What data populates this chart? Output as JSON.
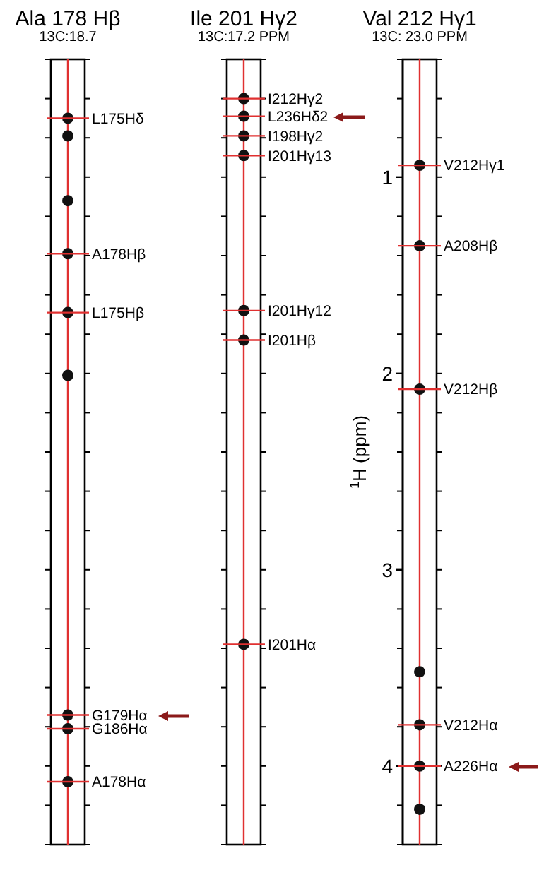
{
  "chart_data": {
    "type": "scatter",
    "ylabel": "$^{1}$H (ppm)",
    "categories": [
      "Ala 178 Hβ",
      "Ile 201 Hγ2",
      "Val 212 Hγ1"
    ],
    "ylim": [
      4.4,
      0.4
    ],
    "yticks": [
      1,
      2,
      3,
      4
    ],
    "marker": "circle",
    "series": [
      {
        "color": "#111111",
        "x": [
          "Ala 178 Hβ",
          "Ala 178 Hβ",
          "Ala 178 Hβ",
          "Ala 178 Hβ",
          "Ala 178 Hβ",
          "Ala 178 Hβ",
          "Ala 178 Hβ",
          "Ala 178 Hβ",
          "Ala 178 Hβ",
          "Ile 201 Hγ2",
          "Ile 201 Hγ2",
          "Ile 201 Hγ2",
          "Ile 201 Hγ2",
          "Ile 201 Hγ2",
          "Ile 201 Hγ2",
          "Ile 201 Hγ2",
          "Val 212 Hγ1",
          "Val 212 Hγ1",
          "Val 212 Hγ1",
          "Val 212 Hγ1",
          "Val 212 Hγ1",
          "Val 212 Hγ1",
          "Val 212 Hγ1"
        ],
        "values": [
          0.7,
          0.79,
          1.12,
          1.39,
          1.69,
          2.01,
          3.74,
          3.81,
          4.08,
          0.6,
          0.69,
          0.79,
          0.89,
          1.68,
          1.83,
          3.38,
          0.94,
          1.35,
          2.08,
          3.52,
          3.79,
          4.0,
          4.22
        ]
      }
    ],
    "ref_lines": [
      {
        "axis": "x",
        "value": "Ala 178 Hβ",
        "color": "#e03030"
      },
      {
        "axis": "x",
        "value": "Ile 201 Hγ2",
        "color": "#e03030"
      },
      {
        "axis": "x",
        "value": "Val 212 Hγ1",
        "color": "#e03030"
      }
    ],
    "annotations": [
      "13C:18.7",
      "13C:17.2 PPM",
      "13C: 23.0 PPM",
      {
        "text": "L175Hδ",
        "x": "Ala 178 Hβ",
        "y": 0.7
      },
      {
        "text": "A178Hβ",
        "x": "Ala 178 Hβ",
        "y": 1.39
      },
      {
        "text": "L175Hβ",
        "x": "Ala 178 Hβ",
        "y": 1.69
      },
      {
        "text": "G179Hα",
        "x": "Ala 178 Hβ",
        "y": 3.74
      },
      {
        "text": "G186Hα",
        "x": "Ala 178 Hβ",
        "y": 3.81
      },
      {
        "text": "A178Hα",
        "x": "Ala 178 Hβ",
        "y": 4.08
      },
      {
        "text": "I212Hγ2",
        "x": "Ile 201 Hγ2",
        "y": 0.6
      },
      {
        "text": "L236Hδ2",
        "x": "Ile 201 Hγ2",
        "y": 0.69
      },
      {
        "text": "I198Hγ2",
        "x": "Ile 201 Hγ2",
        "y": 0.79
      },
      {
        "text": "I201Hγ13",
        "x": "Ile 201 Hγ2",
        "y": 0.89
      },
      {
        "text": "I201Hγ12",
        "x": "Ile 201 Hγ2",
        "y": 1.68
      },
      {
        "text": "I201Hβ",
        "x": "Ile 201 Hγ2",
        "y": 1.83
      },
      {
        "text": "I201Hα",
        "x": "Ile 201 Hγ2",
        "y": 3.38
      },
      {
        "text": "V212Hγ1",
        "x": "Val 212 Hγ1",
        "y": 0.94
      },
      {
        "text": "A208Hβ",
        "x": "Val 212 Hγ1",
        "y": 1.35
      },
      {
        "text": "V212Hβ",
        "x": "Val 212 Hγ1",
        "y": 2.08
      },
      {
        "text": "V212Hα",
        "x": "Val 212 Hγ1",
        "y": 3.79
      },
      {
        "text": "A226Hα",
        "x": "Val 212 Hγ1",
        "y": 4.0
      }
    ]
  }
}
